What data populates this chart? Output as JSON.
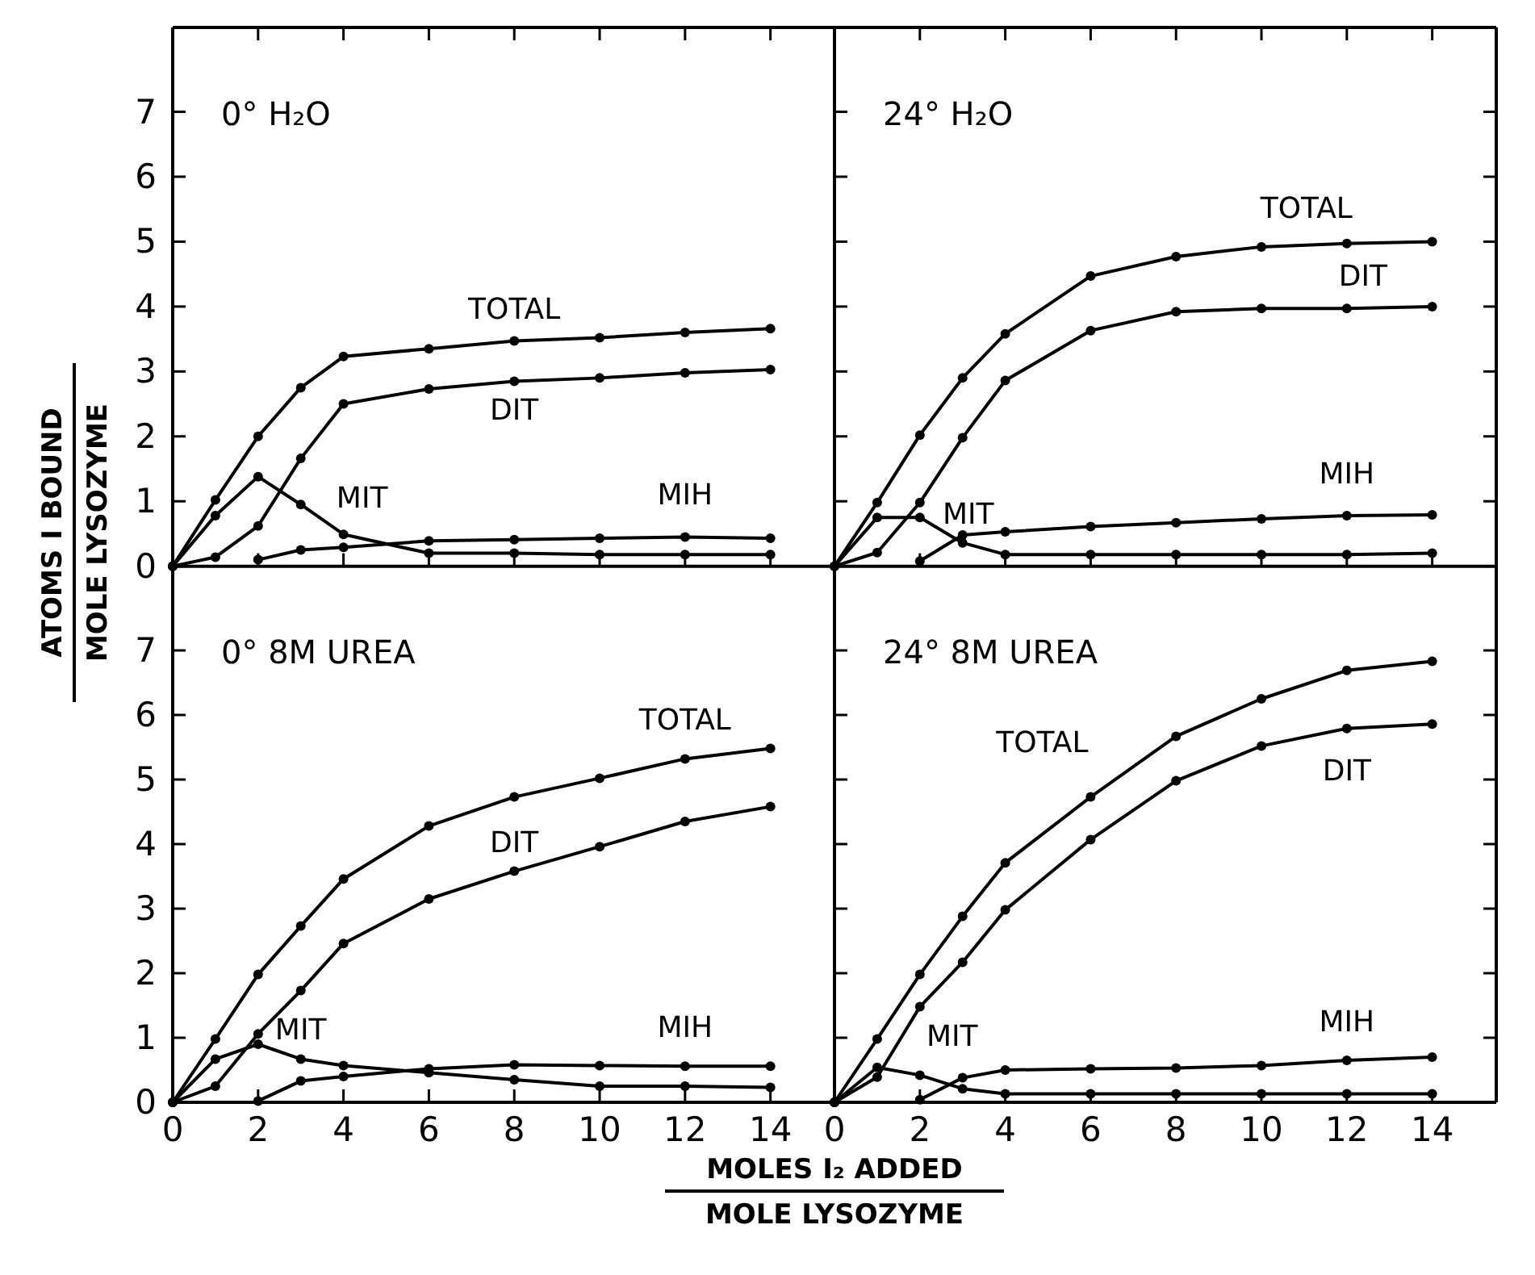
{
  "chart_data": [
    {
      "type": "line",
      "title": "0° H₂O",
      "ylabel": "ATOMS I BOUND\nMOLE LYSOZYME",
      "xlim": [
        0,
        15.5
      ],
      "ylim": [
        -0.8,
        8.3
      ],
      "xticks": [
        0,
        2,
        4,
        6,
        8,
        10,
        12,
        14
      ],
      "yticks": [
        0,
        1,
        2,
        3,
        4,
        5,
        6,
        7
      ],
      "tick_labels": "y",
      "marker": "circle",
      "x": [
        0,
        1,
        2,
        3,
        4,
        6,
        8,
        10,
        12,
        14
      ],
      "series": [
        {
          "name": "TOTAL",
          "color": "#000000",
          "values": [
            0,
            1.02,
            2.0,
            2.75,
            3.23,
            3.35,
            3.47,
            3.52,
            3.6,
            3.66
          ]
        },
        {
          "name": "DIT",
          "color": "#000000",
          "values": [
            0,
            0.14,
            0.62,
            1.66,
            2.5,
            2.73,
            2.85,
            2.9,
            2.98,
            3.03
          ]
        },
        {
          "name": "MIT",
          "color": "#000000",
          "values": [
            0,
            0.78,
            1.38,
            0.95,
            0.49,
            0.2,
            0.2,
            0.18,
            0.18,
            0.18
          ]
        },
        {
          "name": "MIH",
          "color": "#000000",
          "x": [
            2,
            3,
            4,
            6,
            8,
            10,
            12,
            14
          ],
          "values": [
            0.1,
            0.25,
            0.29,
            0.39,
            0.41,
            0.43,
            0.45,
            0.43
          ]
        }
      ]
    },
    {
      "type": "line",
      "title": "24° H₂O",
      "xlim": [
        0,
        15.5
      ],
      "ylim": [
        -0.8,
        8.3
      ],
      "xticks": [
        0,
        2,
        4,
        6,
        8,
        10,
        12,
        14
      ],
      "yticks": [
        0,
        1,
        2,
        3,
        4,
        5,
        6,
        7
      ],
      "tick_labels": false,
      "marker": "circle",
      "x": [
        0,
        1,
        2,
        3,
        4,
        6,
        8,
        10,
        12,
        14
      ],
      "series": [
        {
          "name": "TOTAL",
          "color": "#000000",
          "values": [
            0,
            0.98,
            2.02,
            2.9,
            3.58,
            4.47,
            4.77,
            4.92,
            4.97,
            5.0
          ]
        },
        {
          "name": "DIT",
          "color": "#000000",
          "values": [
            0,
            0.21,
            0.98,
            1.98,
            2.86,
            3.63,
            3.92,
            3.97,
            3.97,
            4.0
          ]
        },
        {
          "name": "MIT",
          "color": "#000000",
          "values": [
            0,
            0.75,
            0.75,
            0.36,
            0.18,
            0.18,
            0.18,
            0.18,
            0.18,
            0.2
          ]
        },
        {
          "name": "MIH",
          "color": "#000000",
          "x": [
            2,
            3,
            4,
            6,
            8,
            10,
            12,
            14
          ],
          "values": [
            0.08,
            0.48,
            0.53,
            0.61,
            0.67,
            0.73,
            0.78,
            0.79
          ]
        }
      ]
    },
    {
      "type": "line",
      "title": "0° 8M UREA",
      "xlabel": "MOLES I₂ ADDED\nMOLE LYSOZYME",
      "xlim": [
        0,
        15.5
      ],
      "ylim": [
        0,
        7.5
      ],
      "xticks": [
        0,
        2,
        4,
        6,
        8,
        10,
        12,
        14
      ],
      "yticks": [
        0,
        1,
        2,
        3,
        4,
        5,
        6,
        7
      ],
      "marker": "circle",
      "x": [
        0,
        1,
        2,
        3,
        4,
        6,
        8,
        10,
        12,
        14
      ],
      "series": [
        {
          "name": "TOTAL",
          "color": "#000000",
          "values": [
            0,
            0.98,
            1.98,
            2.73,
            3.46,
            4.28,
            4.73,
            5.02,
            5.32,
            5.48
          ]
        },
        {
          "name": "DIT",
          "color": "#000000",
          "values": [
            0,
            0.25,
            1.06,
            1.73,
            2.46,
            3.15,
            3.58,
            3.96,
            4.35,
            4.58
          ]
        },
        {
          "name": "MIT",
          "color": "#000000",
          "values": [
            0,
            0.67,
            0.9,
            0.67,
            0.57,
            0.46,
            0.35,
            0.25,
            0.25,
            0.23
          ]
        },
        {
          "name": "MIH",
          "color": "#000000",
          "x": [
            2,
            3,
            4,
            6,
            8,
            10,
            12,
            14
          ],
          "values": [
            0.02,
            0.33,
            0.4,
            0.52,
            0.58,
            0.57,
            0.56,
            0.56
          ]
        }
      ]
    },
    {
      "type": "line",
      "title": "24° 8M UREA",
      "xlim": [
        0,
        15.5
      ],
      "ylim": [
        0,
        7.5
      ],
      "xticks": [
        0,
        2,
        4,
        6,
        8,
        10,
        12,
        14
      ],
      "yticks": [
        0,
        1,
        2,
        3,
        4,
        5,
        6,
        7
      ],
      "tick_labels": "x",
      "marker": "circle",
      "x": [
        0,
        1,
        2,
        3,
        4,
        6,
        8,
        10,
        12,
        14
      ],
      "series": [
        {
          "name": "TOTAL",
          "color": "#000000",
          "values": [
            0,
            0.98,
            1.98,
            2.88,
            3.71,
            4.73,
            5.67,
            6.25,
            6.69,
            6.83
          ]
        },
        {
          "name": "DIT",
          "color": "#000000",
          "values": [
            0,
            0.39,
            1.48,
            2.17,
            2.98,
            4.07,
            4.98,
            5.52,
            5.79,
            5.86
          ]
        },
        {
          "name": "MIT",
          "color": "#000000",
          "values": [
            0,
            0.54,
            0.42,
            0.21,
            0.13,
            0.13,
            0.13,
            0.13,
            0.13,
            0.13
          ]
        },
        {
          "name": "MIH",
          "color": "#000000",
          "x": [
            2,
            3,
            4,
            6,
            8,
            10,
            12,
            14
          ],
          "values": [
            0.04,
            0.38,
            0.5,
            0.52,
            0.53,
            0.57,
            0.65,
            0.7
          ]
        }
      ]
    }
  ]
}
